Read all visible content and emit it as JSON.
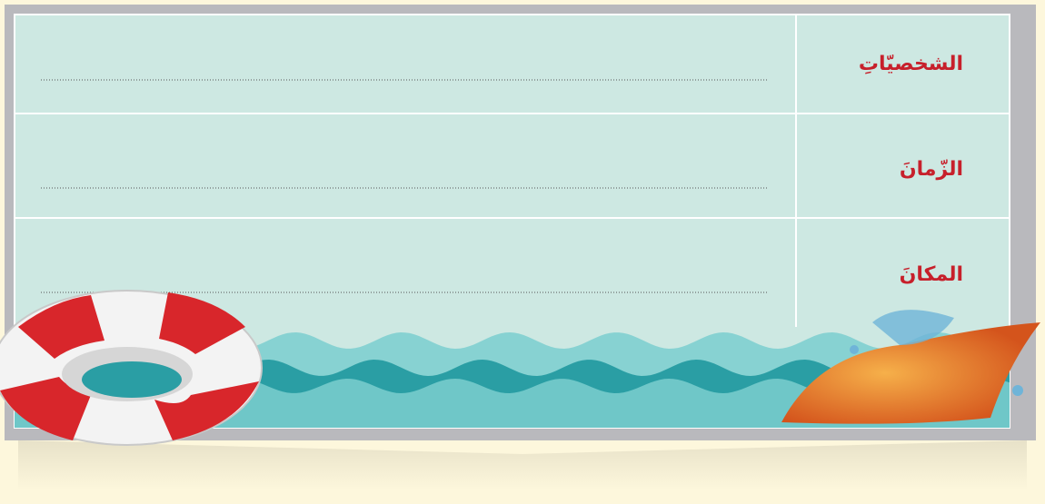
{
  "table": {
    "rows": [
      {
        "label": "الشخصيّاتِ"
      },
      {
        "label": "الزّمانَ"
      },
      {
        "label": "المكانَ"
      }
    ]
  }
}
